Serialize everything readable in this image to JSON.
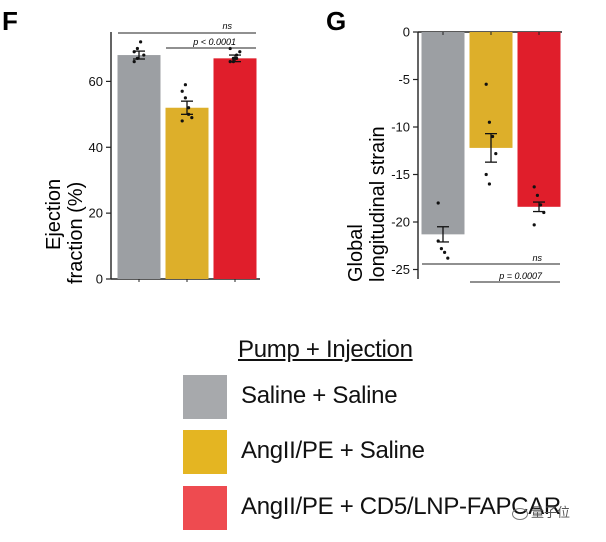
{
  "chart_data": [
    {
      "panel": "F",
      "type": "bar",
      "categories": [
        "Saline + Saline",
        "AngII/PE + Saline",
        "AngII/PE + CD5/LNP-FAPCAR"
      ],
      "values": [
        68,
        52,
        67
      ],
      "sem": [
        1.2,
        2,
        1
      ],
      "points": [
        [
          69,
          70,
          72,
          68,
          66,
          67
        ],
        [
          57,
          55,
          50,
          49,
          48,
          59,
          52
        ],
        [
          66,
          67,
          68,
          69,
          70,
          66,
          67
        ]
      ],
      "colors": [
        "#9c9fa3",
        "#ddaf2a",
        "#e01e2b"
      ],
      "ylabel": "Ejection fraction (%)",
      "ylim": [
        0,
        75
      ],
      "yticks": [
        0,
        20,
        40,
        60
      ],
      "annotations": [
        {
          "label": "ns",
          "from": 0,
          "to": 2
        },
        {
          "label": "p < 0.0001",
          "from": 1,
          "to": 2
        }
      ]
    },
    {
      "panel": "G",
      "type": "bar",
      "categories": [
        "Saline + Saline",
        "AngII/PE + Saline",
        "AngII/PE + CD5/LNP-FAPCAR"
      ],
      "values": [
        -21.3,
        -12.2,
        -18.4
      ],
      "sem": [
        0.8,
        1.5,
        0.5
      ],
      "points": [
        [
          -18,
          -22.8,
          -23.2,
          -23.8,
          -22
        ],
        [
          -5.5,
          -9.5,
          -11,
          -12.8,
          -15,
          -16
        ],
        [
          -16.3,
          -17.2,
          -18.2,
          -19,
          -20.3
        ]
      ],
      "colors": [
        "#9c9fa3",
        "#ddaf2a",
        "#e01e2b"
      ],
      "ylabel": "Global longitudinal strain",
      "ylim": [
        -26,
        0
      ],
      "yticks": [
        0,
        -5,
        -10,
        -15,
        -20,
        -25
      ],
      "annotations": [
        {
          "label": "ns",
          "from": 0,
          "to": 2
        },
        {
          "label": "p = 0.0007",
          "from": 1,
          "to": 2
        }
      ]
    }
  ],
  "panel_f": {
    "letter": "F",
    "ylabel_line1": "Ejection",
    "ylabel_line2": "fraction (%)",
    "ticks": [
      "0",
      "20",
      "40",
      "60"
    ],
    "sig_ns": "ns",
    "sig_p": "p < 0.0001"
  },
  "panel_g": {
    "letter": "G",
    "ylabel_line1": "Global",
    "ylabel_line2": "longitudinal strain",
    "ticks": [
      "0",
      "-5",
      "-10",
      "-15",
      "-20",
      "-25"
    ],
    "sig_ns": "ns",
    "sig_p": "p = 0.0007"
  },
  "legend": {
    "title": "Pump + Injection",
    "items": [
      {
        "label": "Saline + Saline",
        "color": "#a7a9ac"
      },
      {
        "label": "AngII/PE + Saline",
        "color": "#e4b522"
      },
      {
        "label": "AngII/PE + CD5/LNP-FAPCAR",
        "color": "#ee4b50"
      }
    ]
  },
  "watermark": {
    "text": "量子位"
  }
}
